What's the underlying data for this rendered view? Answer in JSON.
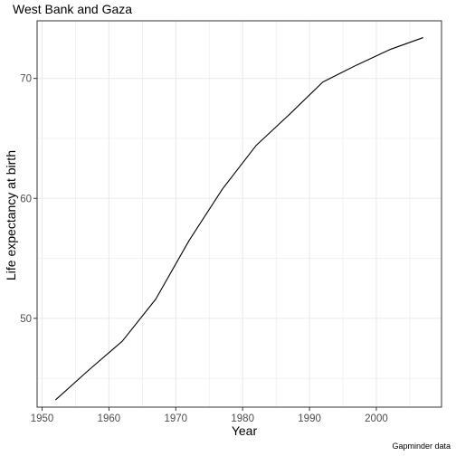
{
  "chart_data": {
    "type": "line",
    "title": "West Bank and Gaza",
    "xlabel": "Year",
    "ylabel": "Life expectancy at birth",
    "caption": "Gapminder data",
    "xlim": [
      1949.25,
      2009.75
    ],
    "ylim": [
      42.6,
      74.8
    ],
    "x_ticks": [
      1950,
      1960,
      1970,
      1980,
      1990,
      2000
    ],
    "y_ticks": [
      50,
      60,
      70
    ],
    "x_tick_labels": [
      "1950",
      "1960",
      "1970",
      "1980",
      "1990",
      "2000"
    ],
    "y_tick_labels": [
      "50",
      "60",
      "70"
    ],
    "grid": true,
    "series": [
      {
        "x": [
          1952,
          1957,
          1962,
          1967,
          1972,
          1977,
          1982,
          1987,
          1992,
          1997,
          2002,
          2007
        ],
        "values": [
          43.2,
          45.7,
          48.1,
          51.6,
          56.5,
          60.8,
          64.4,
          67.0,
          69.7,
          71.1,
          72.4,
          73.4
        ]
      }
    ],
    "colors": {
      "line": "#000000",
      "panel_border": "#333333",
      "grid": "#ebebeb",
      "tick_label": "#4d4d4d"
    }
  }
}
